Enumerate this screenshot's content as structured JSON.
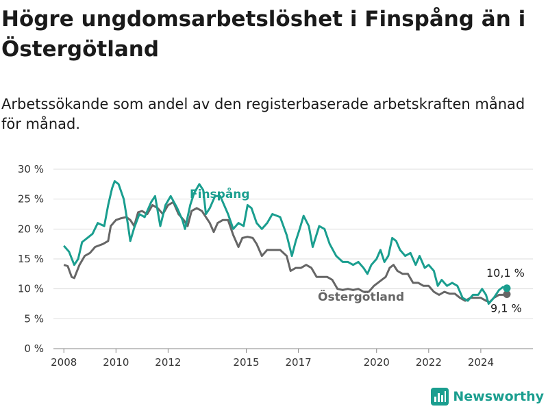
{
  "header": {
    "title": "Högre ungdomsarbetslöshet i Finspång än i Östergötland",
    "subtitle": "Arbetssökande som andel av den registerbaserade arbetskraften månad för månad."
  },
  "brand": {
    "name": "Newsworthy",
    "icon": "bar-chart-logo-icon",
    "color": "#1a9e8f"
  },
  "chart_data": {
    "type": "line",
    "title": "Högre ungdomsarbetslöshet i Finspång än i Östergötland",
    "subtitle": "Arbetssökande som andel av den registerbaserade arbetskraften månad för månad.",
    "xlabel": "",
    "ylabel": "",
    "xlim": [
      2007.6,
      2026.0
    ],
    "ylim": [
      0,
      30
    ],
    "x_ticks": [
      2008,
      2010,
      2012,
      2015,
      2017,
      2020,
      2022,
      2024
    ],
    "y_ticks": [
      {
        "value": 0,
        "label": "0 %"
      },
      {
        "value": 5,
        "label": "5 %"
      },
      {
        "value": 10,
        "label": "10 %"
      },
      {
        "value": 15,
        "label": "15 %"
      },
      {
        "value": 20,
        "label": "20 %"
      },
      {
        "value": 25,
        "label": "25 %"
      },
      {
        "value": 30,
        "label": "30 %"
      }
    ],
    "grid": true,
    "legend": "inline labels",
    "series": [
      {
        "name": "Finspång",
        "color": "#1a9e8f",
        "end_label": "10,1 %",
        "points": [
          [
            2008.0,
            17.2
          ],
          [
            2008.2,
            16.2
          ],
          [
            2008.4,
            14.0
          ],
          [
            2008.55,
            15.0
          ],
          [
            2008.7,
            17.8
          ],
          [
            2008.9,
            18.5
          ],
          [
            2009.1,
            19.2
          ],
          [
            2009.3,
            21.0
          ],
          [
            2009.55,
            20.5
          ],
          [
            2009.7,
            24.0
          ],
          [
            2009.85,
            26.8
          ],
          [
            2009.95,
            28.0
          ],
          [
            2010.1,
            27.5
          ],
          [
            2010.3,
            25.0
          ],
          [
            2010.45,
            21.0
          ],
          [
            2010.55,
            18.0
          ],
          [
            2010.7,
            20.2
          ],
          [
            2010.9,
            22.5
          ],
          [
            2011.1,
            22.0
          ],
          [
            2011.35,
            24.5
          ],
          [
            2011.5,
            25.5
          ],
          [
            2011.7,
            20.5
          ],
          [
            2011.9,
            24.0
          ],
          [
            2012.1,
            25.5
          ],
          [
            2012.35,
            23.5
          ],
          [
            2012.55,
            21.5
          ],
          [
            2012.65,
            20.0
          ],
          [
            2012.85,
            24.0
          ],
          [
            2013.0,
            26.0
          ],
          [
            2013.2,
            27.5
          ],
          [
            2013.35,
            26.5
          ],
          [
            2013.45,
            22.5
          ],
          [
            2013.6,
            23.5
          ],
          [
            2013.8,
            25.5
          ],
          [
            2014.0,
            25.5
          ],
          [
            2014.3,
            22.5
          ],
          [
            2014.5,
            20.0
          ],
          [
            2014.7,
            21.0
          ],
          [
            2014.9,
            20.5
          ],
          [
            2015.05,
            24.0
          ],
          [
            2015.2,
            23.5
          ],
          [
            2015.4,
            21.0
          ],
          [
            2015.6,
            20.0
          ],
          [
            2015.8,
            21.0
          ],
          [
            2016.0,
            22.5
          ],
          [
            2016.3,
            22.0
          ],
          [
            2016.55,
            19.0
          ],
          [
            2016.75,
            15.5
          ],
          [
            2016.9,
            18.0
          ],
          [
            2017.05,
            20.0
          ],
          [
            2017.2,
            22.2
          ],
          [
            2017.4,
            20.5
          ],
          [
            2017.55,
            17.0
          ],
          [
            2017.8,
            20.5
          ],
          [
            2018.0,
            20.0
          ],
          [
            2018.2,
            17.5
          ],
          [
            2018.45,
            15.5
          ],
          [
            2018.7,
            14.5
          ],
          [
            2018.9,
            14.5
          ],
          [
            2019.1,
            14.0
          ],
          [
            2019.3,
            14.5
          ],
          [
            2019.5,
            13.5
          ],
          [
            2019.65,
            12.5
          ],
          [
            2019.8,
            14.0
          ],
          [
            2020.0,
            15.0
          ],
          [
            2020.15,
            16.5
          ],
          [
            2020.3,
            14.5
          ],
          [
            2020.45,
            15.5
          ],
          [
            2020.6,
            18.5
          ],
          [
            2020.75,
            18.0
          ],
          [
            2020.9,
            16.5
          ],
          [
            2021.1,
            15.5
          ],
          [
            2021.3,
            16.0
          ],
          [
            2021.5,
            14.0
          ],
          [
            2021.65,
            15.5
          ],
          [
            2021.85,
            13.5
          ],
          [
            2022.0,
            14.0
          ],
          [
            2022.2,
            13.0
          ],
          [
            2022.35,
            10.5
          ],
          [
            2022.5,
            11.5
          ],
          [
            2022.7,
            10.5
          ],
          [
            2022.9,
            11.0
          ],
          [
            2023.1,
            10.5
          ],
          [
            2023.3,
            8.5
          ],
          [
            2023.5,
            8.0
          ],
          [
            2023.7,
            9.0
          ],
          [
            2023.9,
            9.0
          ],
          [
            2024.05,
            10.0
          ],
          [
            2024.2,
            9.0
          ],
          [
            2024.3,
            7.5
          ],
          [
            2024.5,
            8.5
          ],
          [
            2024.7,
            9.8
          ],
          [
            2024.85,
            10.3
          ],
          [
            2025.0,
            10.1
          ]
        ]
      },
      {
        "name": "Östergötland",
        "color": "#666666",
        "end_label": "9,1 %",
        "points": [
          [
            2008.0,
            14.0
          ],
          [
            2008.15,
            13.8
          ],
          [
            2008.3,
            12.0
          ],
          [
            2008.4,
            11.8
          ],
          [
            2008.6,
            14.0
          ],
          [
            2008.8,
            15.5
          ],
          [
            2009.0,
            16.0
          ],
          [
            2009.2,
            17.0
          ],
          [
            2009.5,
            17.5
          ],
          [
            2009.7,
            18.0
          ],
          [
            2009.8,
            20.5
          ],
          [
            2010.0,
            21.5
          ],
          [
            2010.2,
            21.8
          ],
          [
            2010.4,
            22.0
          ],
          [
            2010.55,
            21.5
          ],
          [
            2010.7,
            20.5
          ],
          [
            2010.85,
            22.8
          ],
          [
            2011.0,
            23.0
          ],
          [
            2011.2,
            22.5
          ],
          [
            2011.4,
            24.0
          ],
          [
            2011.6,
            23.5
          ],
          [
            2011.8,
            22.5
          ],
          [
            2012.0,
            24.0
          ],
          [
            2012.2,
            24.5
          ],
          [
            2012.4,
            22.5
          ],
          [
            2012.6,
            21.5
          ],
          [
            2012.75,
            20.5
          ],
          [
            2012.9,
            23.0
          ],
          [
            2013.1,
            23.5
          ],
          [
            2013.3,
            23.0
          ],
          [
            2013.45,
            22.0
          ],
          [
            2013.6,
            21.0
          ],
          [
            2013.75,
            19.5
          ],
          [
            2013.9,
            21.0
          ],
          [
            2014.1,
            21.5
          ],
          [
            2014.3,
            21.5
          ],
          [
            2014.5,
            19.0
          ],
          [
            2014.7,
            17.0
          ],
          [
            2014.85,
            18.5
          ],
          [
            2015.05,
            18.7
          ],
          [
            2015.25,
            18.5
          ],
          [
            2015.4,
            17.5
          ],
          [
            2015.6,
            15.5
          ],
          [
            2015.8,
            16.5
          ],
          [
            2016.0,
            16.5
          ],
          [
            2016.3,
            16.5
          ],
          [
            2016.55,
            15.5
          ],
          [
            2016.7,
            13.0
          ],
          [
            2016.9,
            13.5
          ],
          [
            2017.1,
            13.5
          ],
          [
            2017.3,
            14.0
          ],
          [
            2017.5,
            13.5
          ],
          [
            2017.7,
            12.0
          ],
          [
            2017.9,
            12.0
          ],
          [
            2018.1,
            12.0
          ],
          [
            2018.3,
            11.5
          ],
          [
            2018.5,
            10.0
          ],
          [
            2018.7,
            9.8
          ],
          [
            2018.9,
            10.0
          ],
          [
            2019.1,
            9.8
          ],
          [
            2019.3,
            10.0
          ],
          [
            2019.5,
            9.5
          ],
          [
            2019.7,
            9.5
          ],
          [
            2019.9,
            10.5
          ],
          [
            2020.05,
            11.0
          ],
          [
            2020.2,
            11.5
          ],
          [
            2020.35,
            12.0
          ],
          [
            2020.5,
            13.5
          ],
          [
            2020.65,
            14.0
          ],
          [
            2020.8,
            13.0
          ],
          [
            2021.0,
            12.5
          ],
          [
            2021.2,
            12.5
          ],
          [
            2021.4,
            11.0
          ],
          [
            2021.6,
            11.0
          ],
          [
            2021.8,
            10.5
          ],
          [
            2022.0,
            10.5
          ],
          [
            2022.2,
            9.5
          ],
          [
            2022.4,
            9.0
          ],
          [
            2022.6,
            9.5
          ],
          [
            2022.8,
            9.2
          ],
          [
            2023.0,
            9.2
          ],
          [
            2023.2,
            8.5
          ],
          [
            2023.4,
            8.0
          ],
          [
            2023.6,
            8.5
          ],
          [
            2023.8,
            8.5
          ],
          [
            2024.0,
            8.5
          ],
          [
            2024.2,
            8.0
          ],
          [
            2024.35,
            7.8
          ],
          [
            2024.5,
            8.5
          ],
          [
            2024.7,
            9.0
          ],
          [
            2024.85,
            9.0
          ],
          [
            2025.0,
            9.1
          ]
        ]
      }
    ]
  }
}
